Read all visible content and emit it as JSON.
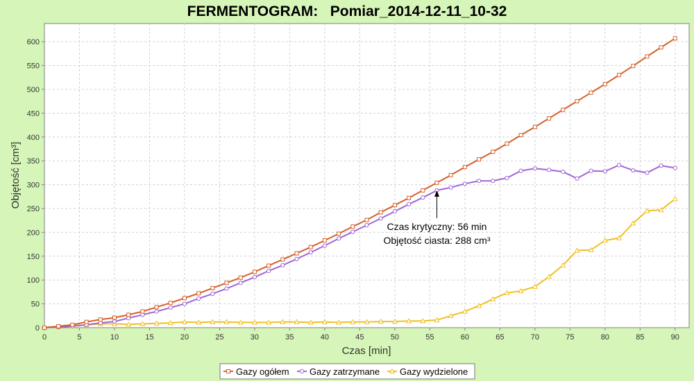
{
  "chart_data": {
    "type": "line",
    "title": "FERMENTOGRAM:   Pomiar_2014-12-11_10-32",
    "xlabel": "Czas [min]",
    "ylabel": "Objętość [cm³]",
    "xlim": [
      0,
      92
    ],
    "ylim": [
      0,
      638
    ],
    "xticks": [
      0,
      5,
      10,
      15,
      20,
      25,
      30,
      35,
      40,
      45,
      50,
      55,
      60,
      65,
      70,
      75,
      80,
      85,
      90
    ],
    "yticks": [
      0,
      50,
      100,
      150,
      200,
      250,
      300,
      350,
      400,
      450,
      500,
      550,
      600
    ],
    "grid": true,
    "legend_position": "bottom-center",
    "x": [
      0,
      2,
      4,
      6,
      8,
      10,
      12,
      14,
      16,
      18,
      20,
      22,
      24,
      26,
      28,
      30,
      32,
      34,
      36,
      38,
      40,
      42,
      44,
      46,
      48,
      50,
      52,
      54,
      56,
      58,
      60,
      62,
      64,
      66,
      68,
      70,
      72,
      74,
      76,
      78,
      80,
      82,
      84,
      86,
      88,
      90
    ],
    "series": [
      {
        "name": "Gazy ogółem",
        "color": "#d4602a",
        "marker": "square",
        "values": [
          0,
          3,
          6,
          12,
          17,
          21,
          27,
          34,
          43,
          52,
          62,
          72,
          83,
          94,
          105,
          117,
          130,
          143,
          156,
          169,
          183,
          197,
          212,
          226,
          242,
          257,
          272,
          288,
          304,
          320,
          337,
          353,
          369,
          386,
          404,
          421,
          439,
          457,
          475,
          493,
          511,
          530,
          549,
          569,
          588,
          607
        ]
      },
      {
        "name": "Gazy zatrzymane",
        "color": "#a066d6",
        "marker": "circle",
        "values": [
          0,
          1,
          3,
          6,
          10,
          13,
          20,
          27,
          34,
          42,
          50,
          61,
          71,
          82,
          94,
          106,
          119,
          131,
          144,
          158,
          172,
          187,
          201,
          215,
          229,
          244,
          259,
          273,
          288,
          294,
          302,
          308,
          308,
          314,
          329,
          334,
          331,
          327,
          313,
          329,
          328,
          341,
          330,
          325,
          340,
          335
        ]
      },
      {
        "name": "Gazy wydzielone",
        "color": "#f0c020",
        "marker": "triangle",
        "values": [
          0,
          2,
          4,
          6,
          8,
          8,
          7,
          8,
          9,
          10,
          12,
          11,
          12,
          12,
          11,
          11,
          11,
          12,
          12,
          11,
          12,
          11,
          12,
          12,
          13,
          13,
          14,
          14,
          16,
          25,
          34,
          46,
          60,
          73,
          77,
          86,
          107,
          131,
          162,
          163,
          183,
          188,
          219,
          245,
          247,
          270
        ]
      }
    ],
    "annotation": {
      "x": 56,
      "y": 288,
      "line1": "Czas krytyczny: 56 min",
      "line2": "Objętość ciasta: 288 cm³"
    }
  }
}
